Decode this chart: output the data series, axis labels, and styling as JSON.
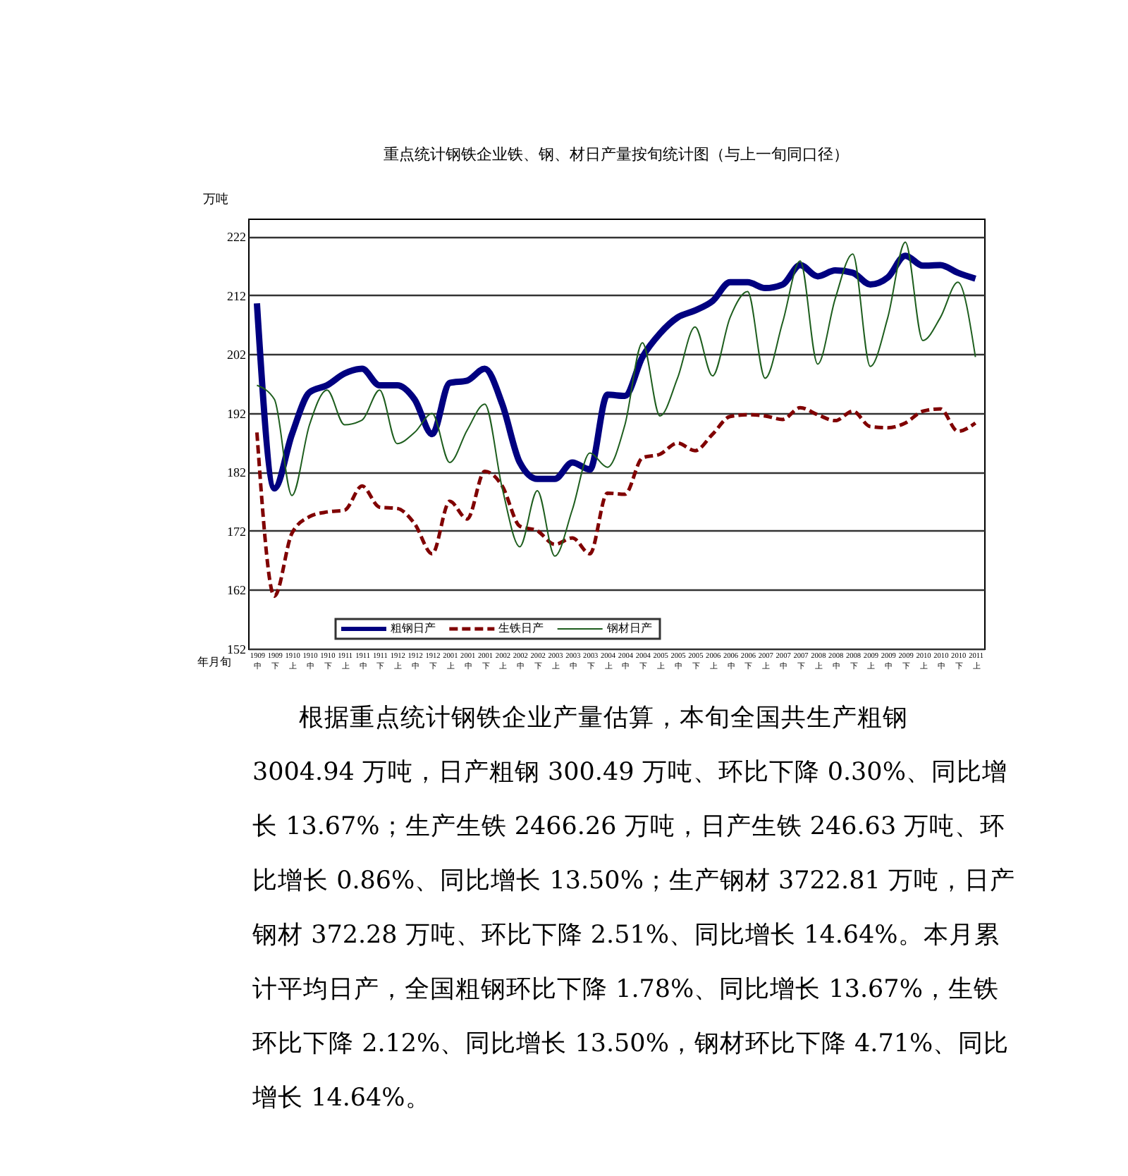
{
  "chart_data": {
    "type": "line",
    "title": "重点统计钢铁企业铁、钢、材日产量按旬统计图（与上一旬同口径）",
    "ylabel": "万吨",
    "xlabel": "年月旬",
    "categories": [
      "1909 中",
      "1909 下",
      "1910 上",
      "1910 中",
      "1910 下",
      "1911 上",
      "1911 中",
      "1911 下",
      "1912 上",
      "1912 中",
      "1912 下",
      "2001 上",
      "2001 中",
      "2001 下",
      "2002 上",
      "2002 中",
      "2002 下",
      "2003 上",
      "2003 中",
      "2003 下",
      "2004 上",
      "2004 中",
      "2004 下",
      "2005 上",
      "2005 中",
      "2005 下",
      "2006 上",
      "2006 中",
      "2006 下",
      "2007 上",
      "2007 中",
      "2007 下",
      "2008 上",
      "2008 中",
      "2008 下",
      "2009 上",
      "2009 中",
      "2009 下",
      "2010 上",
      "2010 中",
      "2010 下",
      "2011 上"
    ],
    "series": [
      {
        "name": "粗钢日产",
        "color": "#000080",
        "line_style": "solid",
        "values": [
          210.6,
          179.2,
          188.4,
          195.5,
          196.7,
          198.7,
          199.5,
          196.7,
          196.7,
          194.3,
          188.4,
          197.1,
          197.5,
          199.5,
          193.5,
          183.6,
          180.8,
          180.8,
          183.6,
          182.4,
          195.1,
          194.9,
          201.5,
          205.5,
          208.2,
          209.4,
          211,
          214.2,
          214.2,
          213.2,
          213.8,
          217.1,
          215.2,
          216.2,
          215.8,
          213.8,
          215,
          218.7,
          217,
          217.1,
          215.8,
          214.8
        ]
      },
      {
        "name": "生铁日产",
        "color": "#800000",
        "line_style": "dashed",
        "values": [
          188.7,
          160.9,
          171.6,
          174.4,
          175.2,
          175.5,
          179.6,
          176,
          175.8,
          173.2,
          168.1,
          177,
          174,
          182.1,
          179.6,
          172.8,
          172,
          169.7,
          170.8,
          168.1,
          178.4,
          178.2,
          184.4,
          185,
          186.9,
          185.6,
          188.4,
          191.4,
          191.7,
          191.5,
          190.9,
          192.9,
          191.7,
          190.7,
          192.3,
          189.7,
          189.5,
          190.3,
          192.3,
          192.7,
          188.9,
          190.3
        ]
      },
      {
        "name": "钢材日产",
        "color": "#1e5e1e",
        "line_style": "solid",
        "values": [
          196.7,
          194.3,
          178,
          190,
          195.9,
          190,
          190.8,
          195.9,
          186.8,
          188.7,
          191.9,
          183.6,
          189.1,
          193.5,
          179.2,
          169.3,
          178.8,
          167.7,
          175.6,
          185.2,
          182.8,
          190,
          203.9,
          191.5,
          197.9,
          206.6,
          198.3,
          208.2,
          212.6,
          197.9,
          207.4,
          217.8,
          200.3,
          211.4,
          219,
          199.9,
          208.2,
          221,
          204.3,
          208.2,
          214.2,
          201.5
        ]
      }
    ],
    "ylim": [
      152,
      225
    ],
    "yticks": [
      152,
      162,
      172,
      182,
      192,
      202,
      212,
      222
    ],
    "grid": "y",
    "legend": "bottom left",
    "marker": "none",
    "annotations": [
      "根据重点统计钢铁企业产量估算，本旬全国共生产粗钢",
      "3004.94 万吨，日产粗钢 300.49 万吨、环比下降 0.30%、同比增",
      "长 13.67%；生产生铁 2466.26 万吨，日产生铁 246.63 万吨、环",
      "比增长 0.86%、同比增长 13.50%；生产钢材 3722.81 万吨，日产",
      "钢材 372.28 万吨、环比下降 2.51%、同比增长 14.64%。本月累",
      "计平均日产，全国粗钢环比下降 1.78%、同比增长 13.67%，生铁",
      "环比下降 2.12%、同比增长 13.50%，钢材环比下降 4.71%、同比",
      "增长 14.64%。"
    ]
  }
}
